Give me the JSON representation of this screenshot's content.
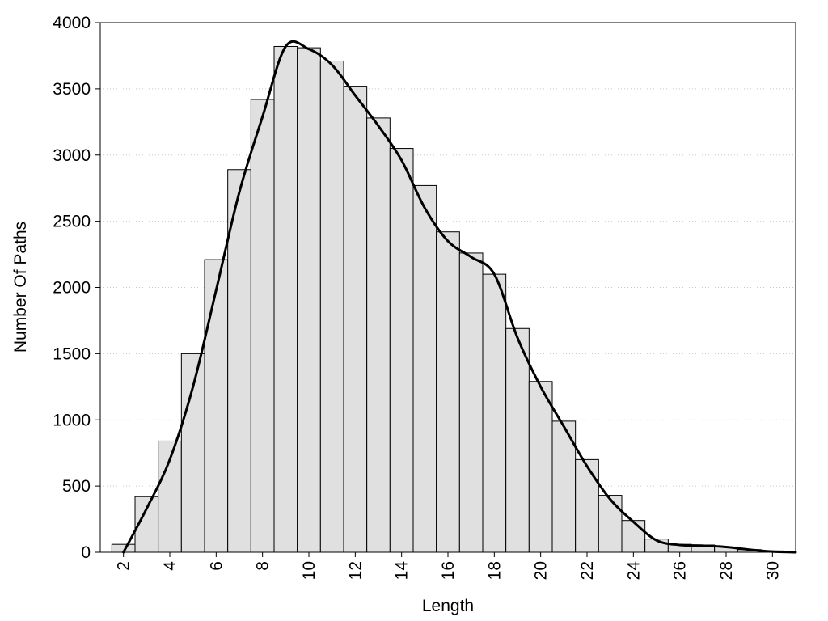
{
  "chart_data": {
    "type": "bar",
    "title": "",
    "xlabel": "Length",
    "ylabel": "Number Of Paths",
    "xlim": [
      1,
      31
    ],
    "ylim": [
      0,
      4000
    ],
    "grid": true,
    "x_ticks": [
      "2",
      "4",
      "6",
      "8",
      "10",
      "12",
      "14",
      "16",
      "18",
      "20",
      "22",
      "24",
      "26",
      "28",
      "30"
    ],
    "y_ticks": [
      "0",
      "500",
      "1000",
      "1500",
      "2000",
      "2500",
      "3000",
      "3500",
      "4000"
    ],
    "bar_color": "#e0e0e0",
    "bar_edge_color": "#000000",
    "bins": [
      {
        "x": 2,
        "value": 60
      },
      {
        "x": 3,
        "value": 420
      },
      {
        "x": 4,
        "value": 840
      },
      {
        "x": 5,
        "value": 1500
      },
      {
        "x": 6,
        "value": 2210
      },
      {
        "x": 7,
        "value": 2890
      },
      {
        "x": 8,
        "value": 3420
      },
      {
        "x": 9,
        "value": 3820
      },
      {
        "x": 10,
        "value": 3810
      },
      {
        "x": 11,
        "value": 3710
      },
      {
        "x": 12,
        "value": 3520
      },
      {
        "x": 13,
        "value": 3280
      },
      {
        "x": 14,
        "value": 3050
      },
      {
        "x": 15,
        "value": 2770
      },
      {
        "x": 16,
        "value": 2420
      },
      {
        "x": 17,
        "value": 2260
      },
      {
        "x": 18,
        "value": 2100
      },
      {
        "x": 19,
        "value": 1690
      },
      {
        "x": 20,
        "value": 1290
      },
      {
        "x": 21,
        "value": 990
      },
      {
        "x": 22,
        "value": 700
      },
      {
        "x": 23,
        "value": 430
      },
      {
        "x": 24,
        "value": 240
      },
      {
        "x": 25,
        "value": 100
      },
      {
        "x": 26,
        "value": 60
      },
      {
        "x": 27,
        "value": 55
      },
      {
        "x": 28,
        "value": 40
      },
      {
        "x": 29,
        "value": 20
      },
      {
        "x": 30,
        "value": 10
      },
      {
        "x": 31,
        "value": 5
      }
    ],
    "curve": {
      "color": "#000000",
      "x": [
        2,
        3,
        4,
        5,
        6,
        7,
        8,
        9,
        10,
        11,
        12,
        13,
        14,
        15,
        16,
        17,
        18,
        19,
        20,
        21,
        22,
        23,
        24,
        25,
        26,
        27,
        28,
        29,
        30,
        31
      ],
      "y": [
        0,
        330,
        700,
        1250,
        1980,
        2720,
        3290,
        3820,
        3800,
        3680,
        3450,
        3220,
        2960,
        2600,
        2350,
        2230,
        2100,
        1620,
        1250,
        950,
        650,
        400,
        230,
        90,
        55,
        50,
        40,
        20,
        5,
        0
      ]
    }
  }
}
